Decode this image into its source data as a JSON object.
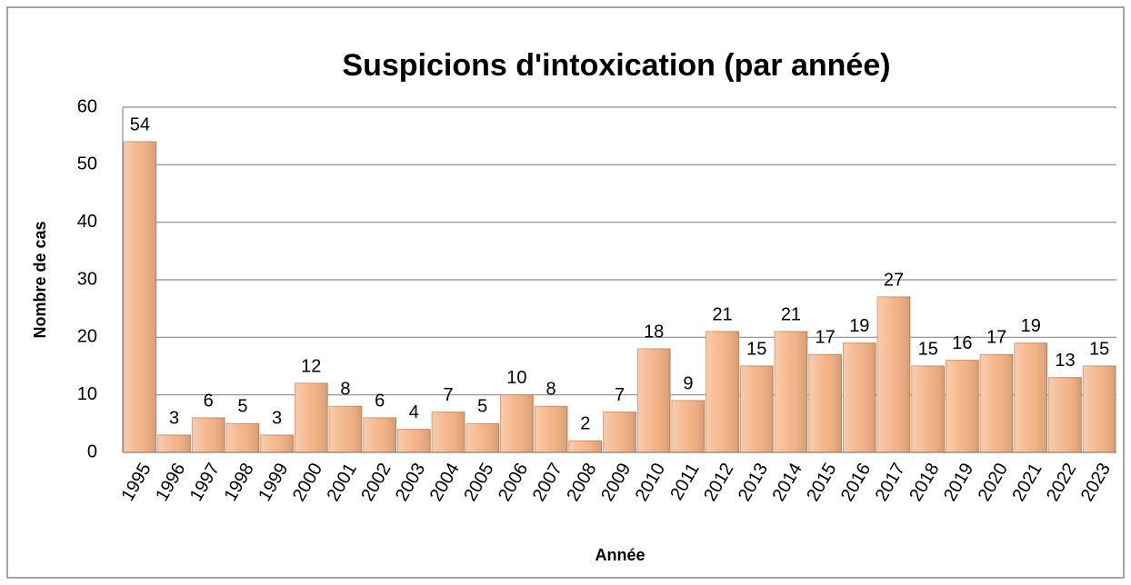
{
  "chart_data": {
    "type": "bar",
    "title": "Suspicions d'intoxication (par année)",
    "y_label": "Nombre de cas",
    "x_label": "Année",
    "categories": [
      "1995",
      "1996",
      "1997",
      "1998",
      "1999",
      "2000",
      "2001",
      "2002",
      "2003",
      "2004",
      "2005",
      "2006",
      "2007",
      "2008",
      "2009",
      "2010",
      "2011",
      "2012",
      "2013",
      "2014",
      "2015",
      "2016",
      "2017",
      "2018",
      "2019",
      "2020",
      "2021",
      "2022",
      "2023"
    ],
    "values": [
      54,
      3,
      6,
      5,
      3,
      12,
      8,
      6,
      4,
      7,
      5,
      10,
      8,
      2,
      7,
      18,
      9,
      21,
      15,
      21,
      17,
      19,
      27,
      15,
      16,
      17,
      19,
      13,
      15
    ],
    "color": "#f4b183",
    "ylim": [
      0,
      60
    ],
    "yticks": [
      0,
      10,
      20,
      30,
      40,
      50,
      60
    ],
    "grid": true
  }
}
